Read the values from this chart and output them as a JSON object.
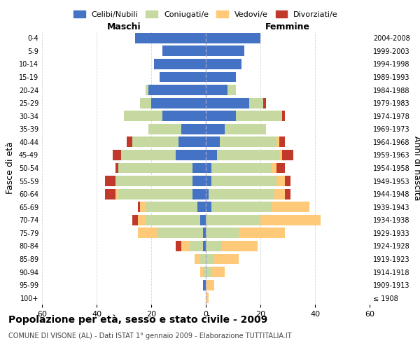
{
  "age_groups": [
    "100+",
    "95-99",
    "90-94",
    "85-89",
    "80-84",
    "75-79",
    "70-74",
    "65-69",
    "60-64",
    "55-59",
    "50-54",
    "45-49",
    "40-44",
    "35-39",
    "30-34",
    "25-29",
    "20-24",
    "15-19",
    "10-14",
    "5-9",
    "0-4"
  ],
  "birth_years": [
    "≤ 1908",
    "1909-1913",
    "1914-1918",
    "1919-1923",
    "1924-1928",
    "1929-1933",
    "1934-1938",
    "1939-1943",
    "1944-1948",
    "1949-1953",
    "1954-1958",
    "1959-1963",
    "1964-1968",
    "1969-1973",
    "1974-1978",
    "1979-1983",
    "1984-1988",
    "1989-1993",
    "1994-1998",
    "1999-2003",
    "2004-2008"
  ],
  "males": {
    "celibi": [
      0,
      1,
      0,
      0,
      1,
      1,
      2,
      3,
      5,
      5,
      5,
      11,
      10,
      9,
      16,
      20,
      21,
      17,
      19,
      16,
      26
    ],
    "coniugati": [
      0,
      0,
      1,
      2,
      5,
      17,
      20,
      19,
      27,
      28,
      27,
      20,
      17,
      12,
      14,
      4,
      1,
      0,
      0,
      0,
      0
    ],
    "vedovi": [
      0,
      0,
      1,
      2,
      3,
      7,
      3,
      2,
      1,
      0,
      0,
      0,
      0,
      0,
      0,
      0,
      0,
      0,
      0,
      0,
      0
    ],
    "divorziati": [
      0,
      0,
      0,
      0,
      2,
      0,
      2,
      1,
      4,
      4,
      1,
      3,
      2,
      0,
      0,
      0,
      0,
      0,
      0,
      0,
      0
    ]
  },
  "females": {
    "nubili": [
      0,
      0,
      0,
      0,
      0,
      0,
      0,
      2,
      1,
      2,
      2,
      4,
      5,
      7,
      11,
      16,
      8,
      11,
      13,
      14,
      20
    ],
    "coniugate": [
      0,
      0,
      2,
      3,
      6,
      12,
      20,
      22,
      24,
      24,
      22,
      23,
      21,
      15,
      17,
      5,
      3,
      0,
      0,
      0,
      0
    ],
    "vedove": [
      1,
      3,
      5,
      9,
      13,
      17,
      22,
      14,
      4,
      3,
      2,
      1,
      1,
      0,
      0,
      0,
      0,
      0,
      0,
      0,
      0
    ],
    "divorziate": [
      0,
      0,
      0,
      0,
      0,
      0,
      0,
      0,
      2,
      2,
      3,
      4,
      2,
      0,
      1,
      1,
      0,
      0,
      0,
      0,
      0
    ]
  },
  "colors": {
    "celibi": "#4472c4",
    "coniugati": "#c5d9a0",
    "vedovi": "#ffc97a",
    "divorziati": "#c0392b"
  },
  "xlim": 60,
  "title": "Popolazione per età, sesso e stato civile - 2009",
  "subtitle": "COMUNE DI VISONE (AL) - Dati ISTAT 1° gennaio 2009 - Elaborazione TUTTITALIA.IT",
  "ylabel_left": "Fasce di età",
  "ylabel_right": "Anni di nascita",
  "xlabel_left": "Maschi",
  "xlabel_right": "Femmine",
  "legend_labels": [
    "Celibi/Nubili",
    "Coniugati/e",
    "Vedovi/e",
    "Divorziati/e"
  ],
  "bg_color": "#ffffff",
  "grid_color": "#cccccc",
  "bar_height": 0.8
}
